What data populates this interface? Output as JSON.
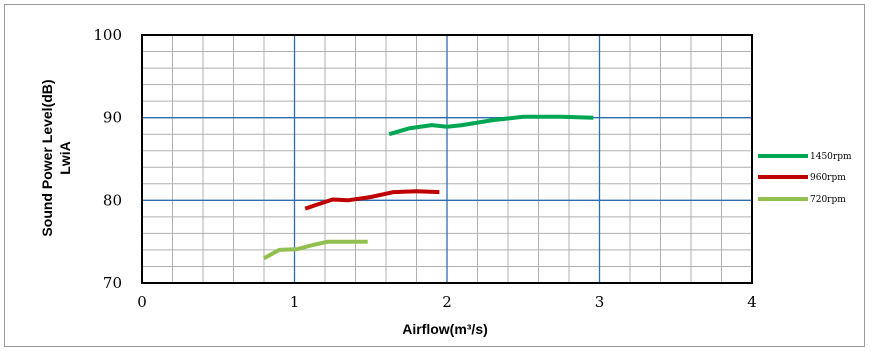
{
  "chart_data": {
    "type": "line",
    "xlabel": "Airflow(m³/s)",
    "ylabel": "Sound Power Level(dB)",
    "ylabel2": "LwiA",
    "xlim": [
      0,
      4
    ],
    "ylim": [
      70,
      100
    ],
    "xticks": [
      "0",
      "1",
      "2",
      "3",
      "4"
    ],
    "yticks": [
      "70",
      "80",
      "90",
      "100"
    ],
    "grid": true,
    "legend_position": "right",
    "series": [
      {
        "name": "1450rpm",
        "color": "#00a651",
        "x": [
          1.62,
          1.75,
          1.9,
          2.0,
          2.1,
          2.3,
          2.5,
          2.75,
          2.96
        ],
        "y": [
          88.0,
          88.7,
          89.1,
          88.9,
          89.1,
          89.7,
          90.1,
          90.1,
          90.0
        ]
      },
      {
        "name": "960rpm",
        "color": "#c00000",
        "x": [
          1.07,
          1.15,
          1.25,
          1.35,
          1.5,
          1.65,
          1.8,
          1.95
        ],
        "y": [
          79.0,
          79.5,
          80.1,
          80.0,
          80.4,
          81.0,
          81.1,
          81.0
        ]
      },
      {
        "name": "720rpm",
        "color": "#92c050",
        "x": [
          0.8,
          0.9,
          1.02,
          1.12,
          1.22,
          1.35,
          1.48
        ],
        "y": [
          73.0,
          74.0,
          74.1,
          74.6,
          75.0,
          75.0,
          75.0
        ]
      }
    ]
  }
}
